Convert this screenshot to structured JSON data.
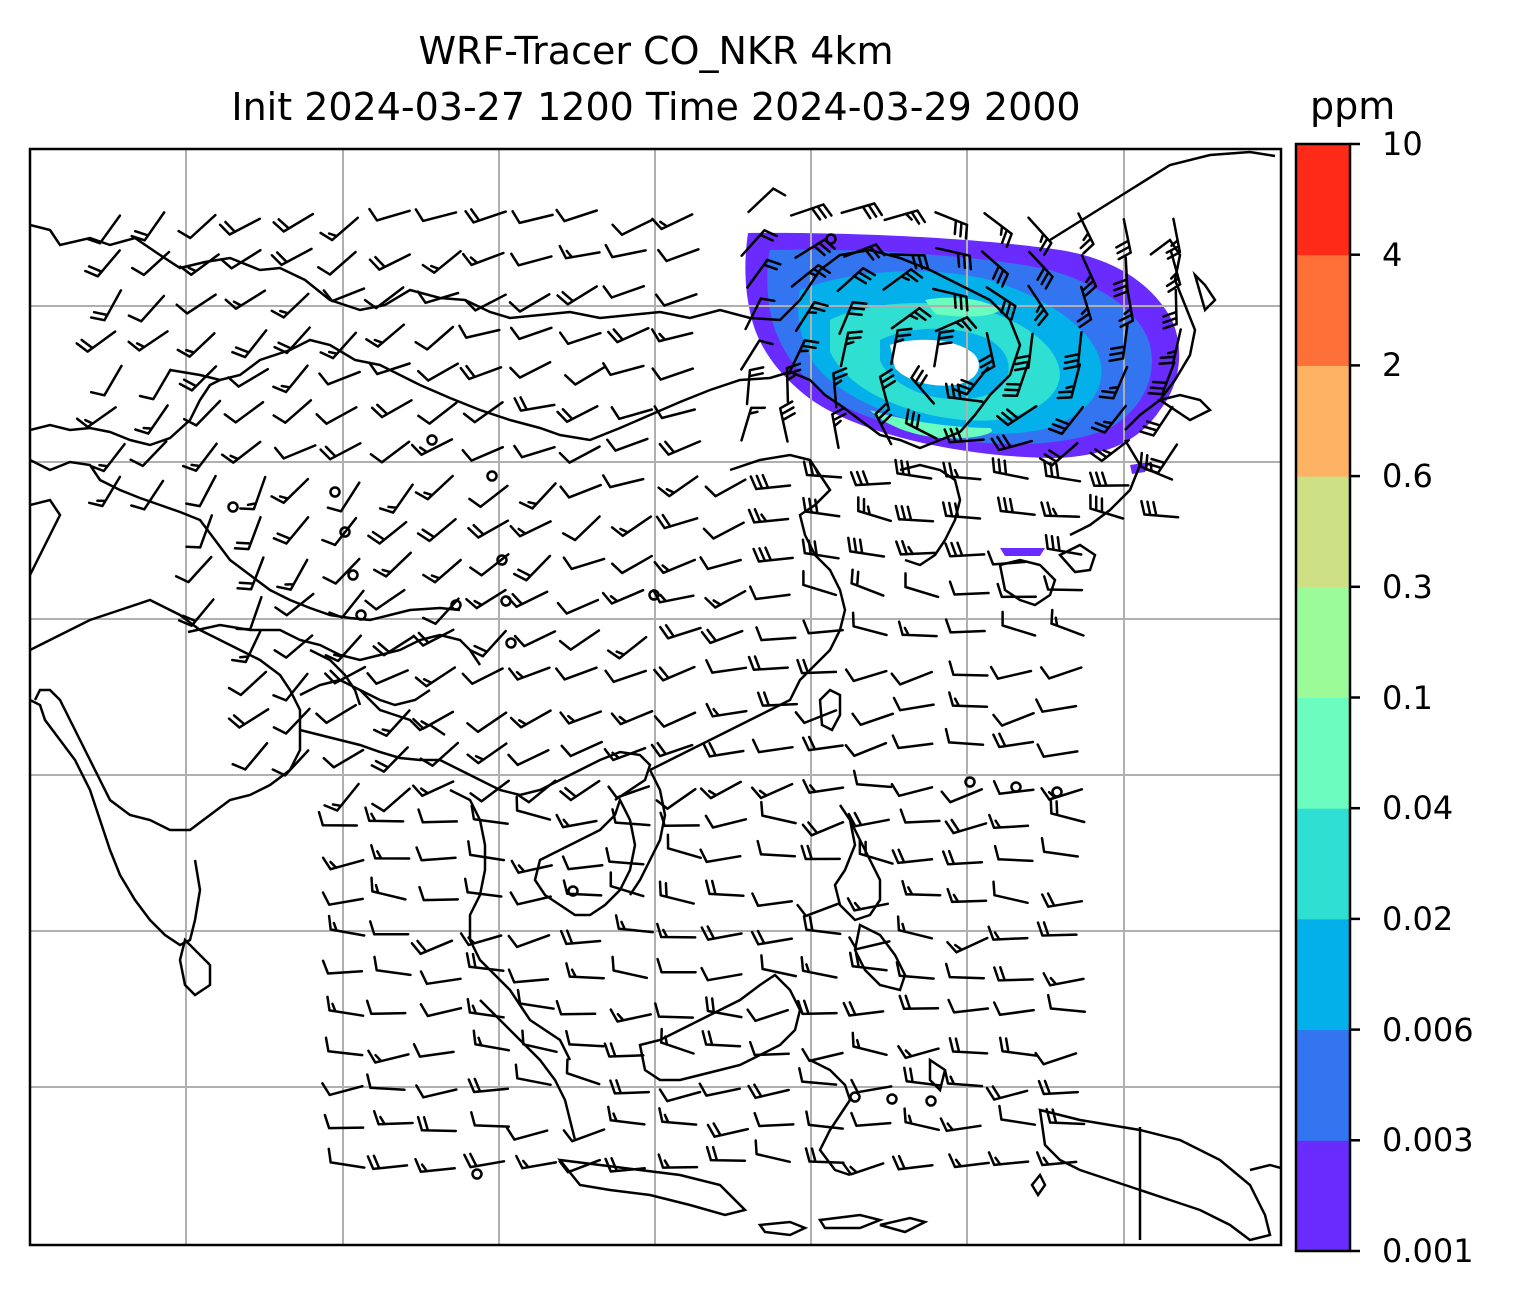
{
  "title": {
    "line1": "WRF-Tracer CO_NKR 4km",
    "line2": "Init 2024-03-27 1200 Time 2024-03-29 2000"
  },
  "colorbar": {
    "unit": "ppm",
    "ticks": [
      "0.001",
      "0.003",
      "0.006",
      "0.02",
      "0.04",
      "0.1",
      "0.3",
      "0.6",
      "2",
      "4",
      "10"
    ],
    "colors": [
      "#6a2bff",
      "#3374f0",
      "#03b0ea",
      "#2fdfd2",
      "#6bfcc0",
      "#9bfb98",
      "#cde083",
      "#fdb264",
      "#ff7038",
      "#ff2a17"
    ]
  },
  "map": {
    "gridlines": true,
    "field": "CO_NKR tracer concentration",
    "plume_region": "Northeast Asia / Sea of Okhotsk, cyclonic swirl",
    "wind_barbs": true
  }
}
